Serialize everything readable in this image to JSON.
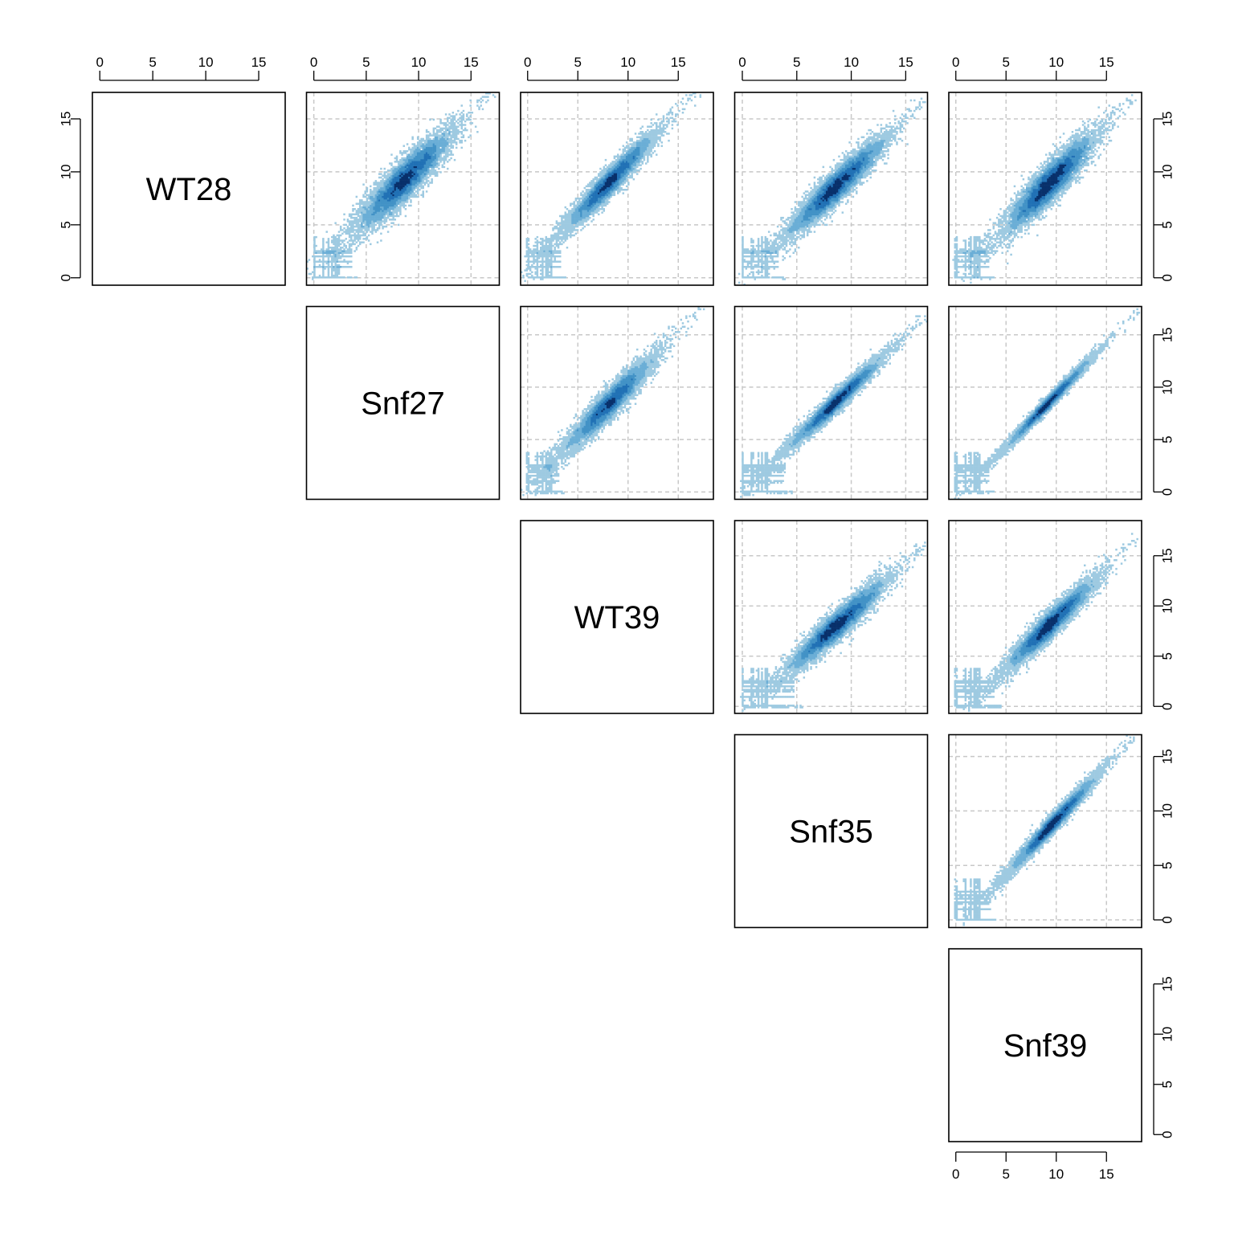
{
  "chart_data": {
    "type": "scatter",
    "subtype": "pairs-matrix-smoothscatter",
    "variables": [
      "WT28",
      "Snf27",
      "WT39",
      "Snf35",
      "Snf39"
    ],
    "axis_ticks": [
      0,
      5,
      10,
      15
    ],
    "grid": true,
    "density_colors": [
      "#deebf7",
      "#9ecae1",
      "#6baed6",
      "#4292c6",
      "#2171b5",
      "#08306b"
    ],
    "panels": [
      {
        "row": 0,
        "col": 1,
        "x_var": "Snf27",
        "y_var": "WT28",
        "xlim": [
          -0.7,
          17.7
        ],
        "ylim": [
          -0.7,
          17.5
        ],
        "center": [
          9.0,
          9.6
        ],
        "spread": 0.8,
        "xmax": 17.0,
        "low_band_max": 4.2
      },
      {
        "row": 0,
        "col": 2,
        "x_var": "WT39",
        "y_var": "WT28",
        "xlim": [
          -0.7,
          18.5
        ],
        "ylim": [
          -0.7,
          17.5
        ],
        "center": [
          8.5,
          9.4
        ],
        "spread": 0.55,
        "xmax": 17.5,
        "low_band_max": 3.8
      },
      {
        "row": 0,
        "col": 3,
        "x_var": "Snf35",
        "y_var": "WT28",
        "xlim": [
          -0.7,
          17.0
        ],
        "ylim": [
          -0.7,
          17.5
        ],
        "center": [
          9.0,
          9.0
        ],
        "spread": 0.65,
        "xmax": 16.5,
        "low_band_max": 3.9
      },
      {
        "row": 0,
        "col": 4,
        "x_var": "Snf39",
        "y_var": "WT28",
        "xlim": [
          -0.7,
          18.5
        ],
        "ylim": [
          -0.7,
          17.5
        ],
        "center": [
          9.8,
          9.4
        ],
        "spread": 0.75,
        "xmax": 18.0,
        "low_band_max": 3.8
      },
      {
        "row": 1,
        "col": 2,
        "x_var": "WT39",
        "y_var": "Snf27",
        "xlim": [
          -0.7,
          18.5
        ],
        "ylim": [
          -0.7,
          17.7
        ],
        "center": [
          8.5,
          8.8
        ],
        "spread": 0.6,
        "xmax": 17.5,
        "low_band_max": 3.5
      },
      {
        "row": 1,
        "col": 3,
        "x_var": "Snf35",
        "y_var": "Snf27",
        "xlim": [
          -0.7,
          17.0
        ],
        "ylim": [
          -0.7,
          17.7
        ],
        "center": [
          9.0,
          9.0
        ],
        "spread": 0.4,
        "xmax": 16.8,
        "low_band_max": 4.5
      },
      {
        "row": 1,
        "col": 4,
        "x_var": "Snf39",
        "y_var": "Snf27",
        "xlim": [
          -0.7,
          18.5
        ],
        "ylim": [
          -0.7,
          17.7
        ],
        "center": [
          9.5,
          8.8
        ],
        "spread": 0.25,
        "xmax": 18.0,
        "low_band_max": 3.8
      },
      {
        "row": 2,
        "col": 3,
        "x_var": "Snf35",
        "y_var": "WT39",
        "xlim": [
          -0.7,
          17.0
        ],
        "ylim": [
          -0.7,
          18.5
        ],
        "center": [
          9.0,
          8.4
        ],
        "spread": 0.6,
        "xmax": 16.8,
        "low_band_max": 5.5
      },
      {
        "row": 2,
        "col": 4,
        "x_var": "Snf39",
        "y_var": "WT39",
        "xlim": [
          -0.7,
          18.5
        ],
        "ylim": [
          -0.7,
          18.5
        ],
        "center": [
          9.8,
          8.6
        ],
        "spread": 0.55,
        "xmax": 18.0,
        "low_band_max": 4.5
      },
      {
        "row": 3,
        "col": 4,
        "x_var": "Snf39",
        "y_var": "Snf35",
        "xlim": [
          -0.7,
          18.5
        ],
        "ylim": [
          -0.7,
          17.0
        ],
        "center": [
          10.0,
          9.2
        ],
        "spread": 0.35,
        "xmax": 17.5,
        "low_band_max": 4.0
      }
    ],
    "diagonal_ranges": {
      "WT28": [
        -0.7,
        17.5
      ],
      "Snf27": [
        -0.7,
        17.7
      ],
      "WT39": [
        -0.7,
        18.5
      ],
      "Snf35": [
        -0.7,
        17.0
      ],
      "Snf39": [
        -0.7,
        18.5
      ]
    }
  }
}
